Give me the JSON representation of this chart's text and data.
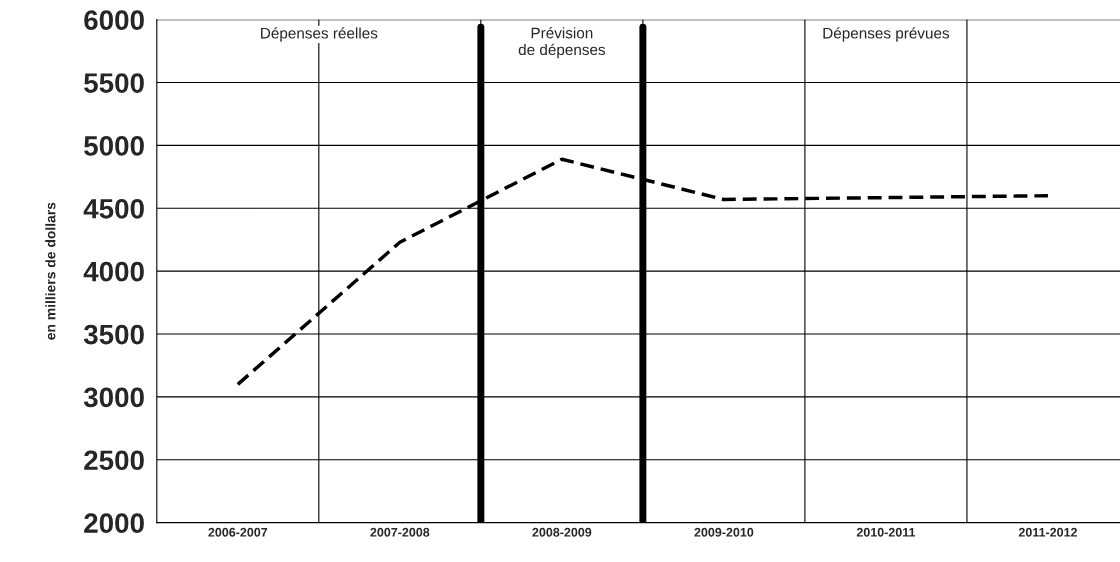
{
  "chart_data": {
    "type": "line",
    "ylabel": "en milliers de dollars",
    "categories": [
      "2006-2007",
      "2007-2008",
      "2008-2009",
      "2009-2010",
      "2010-2011",
      "2011-2012"
    ],
    "series": [
      {
        "color": "#000000",
        "values": [
          3100,
          4230,
          4890,
          4570,
          4585,
          4600
        ]
      }
    ],
    "ylim": [
      2000,
      6000
    ],
    "yticks": [
      2000,
      2500,
      3000,
      3500,
      4000,
      4500,
      5000,
      5500,
      6000
    ],
    "grid": true,
    "line_style": "dashed",
    "marker": "none",
    "annotations": [
      "Dépenses réelles",
      "Prévision\nde dépenses",
      "Dépenses prévues"
    ]
  }
}
